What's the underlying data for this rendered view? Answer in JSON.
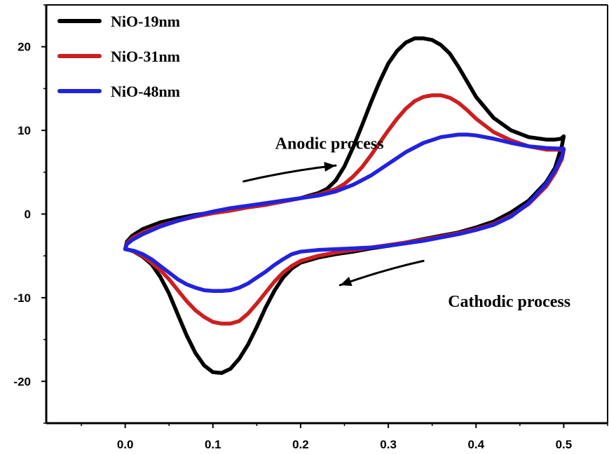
{
  "chart_data": {
    "type": "line",
    "title": "",
    "xlabel": "",
    "ylabel": "",
    "xlim": [
      -0.09,
      0.55
    ],
    "ylim": [
      -25,
      25
    ],
    "x_ticks": [
      0.0,
      0.1,
      0.2,
      0.3,
      0.4,
      0.5
    ],
    "x_tick_labels": [
      "0.0",
      "0.1",
      "0.2",
      "0.3",
      "0.4",
      "0.5"
    ],
    "y_ticks": [
      20,
      10,
      0,
      -10,
      -20
    ],
    "y_tick_labels": [
      "20",
      "10",
      "0",
      "-10",
      "-20"
    ],
    "grid": false,
    "legend_position": "top-left",
    "series": [
      {
        "name": "NiO-19nm",
        "color": "#000000",
        "x": [
          0.0,
          0.002,
          0.008,
          0.02,
          0.04,
          0.06,
          0.08,
          0.1,
          0.12,
          0.14,
          0.16,
          0.18,
          0.2,
          0.21,
          0.22,
          0.23,
          0.24,
          0.25,
          0.26,
          0.27,
          0.28,
          0.29,
          0.3,
          0.31,
          0.32,
          0.33,
          0.34,
          0.35,
          0.36,
          0.37,
          0.38,
          0.39,
          0.4,
          0.42,
          0.44,
          0.46,
          0.48,
          0.49,
          0.497,
          0.5,
          0.498,
          0.49,
          0.48,
          0.46,
          0.44,
          0.42,
          0.4,
          0.38,
          0.36,
          0.34,
          0.32,
          0.3,
          0.28,
          0.26,
          0.24,
          0.22,
          0.2,
          0.19,
          0.18,
          0.17,
          0.16,
          0.15,
          0.14,
          0.13,
          0.12,
          0.11,
          0.1,
          0.09,
          0.08,
          0.07,
          0.06,
          0.05,
          0.04,
          0.03,
          0.02,
          0.01,
          0.005,
          0.0
        ],
        "y": [
          -4.2,
          -3.3,
          -2.6,
          -1.8,
          -1.0,
          -0.5,
          -0.1,
          0.2,
          0.5,
          0.8,
          1.1,
          1.5,
          1.9,
          2.2,
          2.5,
          3.0,
          4.0,
          5.7,
          8.0,
          10.6,
          13.3,
          15.8,
          18.0,
          19.5,
          20.5,
          21.0,
          21.0,
          20.8,
          20.2,
          19.2,
          17.6,
          15.8,
          14.0,
          11.5,
          10.0,
          9.2,
          8.9,
          8.9,
          9.0,
          9.3,
          8.2,
          5.5,
          3.8,
          1.6,
          0.2,
          -0.9,
          -1.6,
          -2.2,
          -2.6,
          -3.0,
          -3.4,
          -3.8,
          -4.1,
          -4.5,
          -4.8,
          -5.2,
          -5.8,
          -6.5,
          -7.6,
          -9.2,
          -11.2,
          -13.5,
          -15.6,
          -17.3,
          -18.5,
          -19.0,
          -18.9,
          -18.1,
          -16.6,
          -14.5,
          -12.0,
          -9.5,
          -7.5,
          -6.0,
          -5.1,
          -4.5,
          -4.3,
          -4.2
        ]
      },
      {
        "name": "NiO-31nm",
        "color": "#cc1f1f",
        "x": [
          0.0,
          0.002,
          0.008,
          0.02,
          0.04,
          0.06,
          0.08,
          0.1,
          0.12,
          0.14,
          0.16,
          0.18,
          0.2,
          0.22,
          0.24,
          0.25,
          0.26,
          0.27,
          0.28,
          0.29,
          0.3,
          0.31,
          0.32,
          0.33,
          0.34,
          0.35,
          0.36,
          0.37,
          0.38,
          0.39,
          0.4,
          0.42,
          0.44,
          0.46,
          0.48,
          0.5,
          0.498,
          0.49,
          0.48,
          0.46,
          0.44,
          0.42,
          0.4,
          0.38,
          0.36,
          0.34,
          0.32,
          0.3,
          0.28,
          0.26,
          0.24,
          0.22,
          0.2,
          0.19,
          0.18,
          0.17,
          0.16,
          0.15,
          0.14,
          0.13,
          0.12,
          0.11,
          0.1,
          0.09,
          0.08,
          0.07,
          0.06,
          0.05,
          0.04,
          0.03,
          0.02,
          0.01,
          0.005,
          0.0
        ],
        "y": [
          -4.2,
          -3.5,
          -2.9,
          -2.2,
          -1.4,
          -0.8,
          -0.3,
          0.1,
          0.4,
          0.8,
          1.1,
          1.5,
          1.9,
          2.3,
          3.0,
          3.6,
          4.5,
          5.6,
          7.0,
          8.5,
          10.0,
          11.4,
          12.6,
          13.5,
          14.0,
          14.2,
          14.2,
          13.9,
          13.3,
          12.4,
          11.4,
          9.8,
          8.8,
          8.1,
          7.7,
          7.7,
          6.6,
          4.9,
          3.3,
          1.2,
          -0.2,
          -1.2,
          -1.8,
          -2.3,
          -2.7,
          -3.1,
          -3.4,
          -3.7,
          -4.0,
          -4.3,
          -4.6,
          -5.0,
          -5.6,
          -6.2,
          -7.0,
          -8.1,
          -9.4,
          -10.7,
          -11.9,
          -12.8,
          -13.1,
          -13.1,
          -12.9,
          -12.3,
          -11.5,
          -10.4,
          -9.1,
          -7.8,
          -6.7,
          -5.8,
          -5.0,
          -4.5,
          -4.3,
          -4.2
        ]
      },
      {
        "name": "NiO-48nm",
        "color": "#2222dd",
        "x": [
          0.0,
          0.002,
          0.008,
          0.02,
          0.04,
          0.06,
          0.08,
          0.1,
          0.12,
          0.14,
          0.16,
          0.18,
          0.2,
          0.22,
          0.24,
          0.26,
          0.28,
          0.3,
          0.32,
          0.34,
          0.36,
          0.38,
          0.39,
          0.4,
          0.42,
          0.44,
          0.46,
          0.48,
          0.5,
          0.498,
          0.49,
          0.48,
          0.46,
          0.44,
          0.42,
          0.4,
          0.38,
          0.36,
          0.34,
          0.32,
          0.3,
          0.28,
          0.26,
          0.24,
          0.22,
          0.2,
          0.19,
          0.18,
          0.17,
          0.16,
          0.15,
          0.14,
          0.13,
          0.12,
          0.11,
          0.1,
          0.09,
          0.08,
          0.07,
          0.06,
          0.05,
          0.04,
          0.03,
          0.02,
          0.01,
          0.005,
          0.0
        ],
        "y": [
          -4.2,
          -3.6,
          -3.1,
          -2.4,
          -1.5,
          -0.8,
          -0.2,
          0.3,
          0.7,
          1.0,
          1.3,
          1.6,
          1.9,
          2.2,
          2.7,
          3.5,
          4.6,
          6.0,
          7.4,
          8.5,
          9.2,
          9.5,
          9.5,
          9.4,
          9.0,
          8.5,
          8.1,
          7.9,
          7.8,
          6.9,
          5.2,
          3.6,
          1.3,
          -0.3,
          -1.3,
          -1.9,
          -2.4,
          -2.8,
          -3.2,
          -3.5,
          -3.8,
          -4.0,
          -4.1,
          -4.2,
          -4.3,
          -4.5,
          -4.8,
          -5.4,
          -6.1,
          -6.9,
          -7.6,
          -8.3,
          -8.8,
          -9.1,
          -9.2,
          -9.2,
          -9.1,
          -8.8,
          -8.4,
          -7.8,
          -7.0,
          -6.2,
          -5.4,
          -4.8,
          -4.4,
          -4.3,
          -4.2
        ]
      }
    ],
    "annotations": [
      {
        "text": "Anodic process",
        "x": 0.171,
        "y": 7.8
      },
      {
        "text": "Cathodic process",
        "x": 0.368,
        "y": -11.1
      }
    ],
    "arrows": [
      {
        "name": "anodic-arrow",
        "from": [
          0.135,
          3.9
        ],
        "to": [
          0.24,
          5.8
        ]
      },
      {
        "name": "cathodic-arrow",
        "from": [
          0.34,
          -5.6
        ],
        "to": [
          0.245,
          -8.5
        ]
      }
    ]
  }
}
